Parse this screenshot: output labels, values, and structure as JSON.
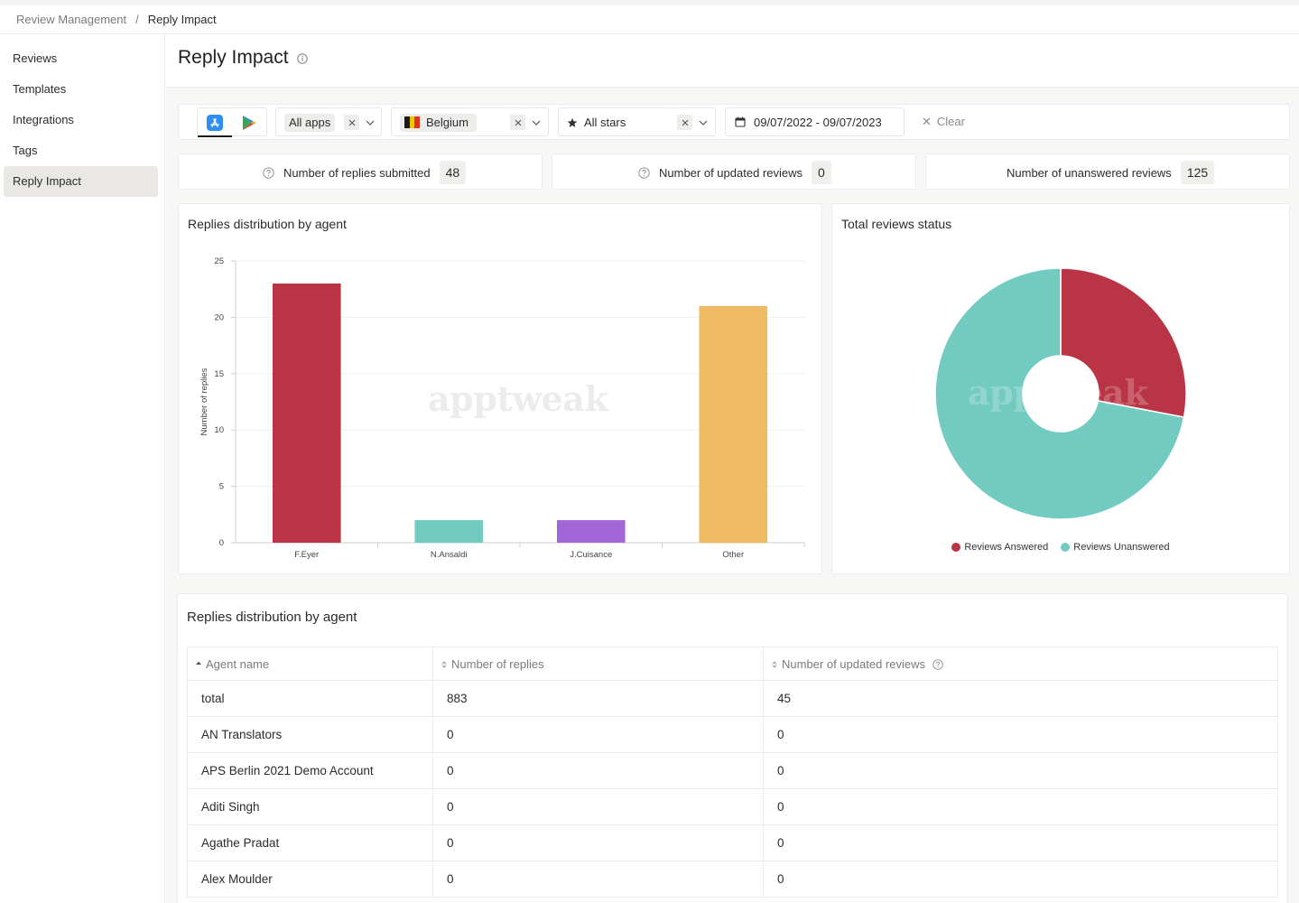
{
  "breadcrumb": {
    "parent": "Review Management",
    "separator": "/",
    "current": "Reply Impact"
  },
  "sidebar": {
    "items": [
      {
        "label": "Reviews",
        "active": false
      },
      {
        "label": "Templates",
        "active": false
      },
      {
        "label": "Integrations",
        "active": false
      },
      {
        "label": "Tags",
        "active": false
      },
      {
        "label": "Reply Impact",
        "active": true
      }
    ]
  },
  "page": {
    "title": "Reply Impact"
  },
  "filters": {
    "stores": [
      "app-store-icon",
      "google-play-icon"
    ],
    "apps": "All apps",
    "country": "Belgium",
    "country_flag_colors": [
      "#1a1a1a",
      "#f2c500",
      "#e0301e"
    ],
    "stars": "All stars",
    "date_range": "09/07/2022 - 09/07/2023",
    "clear": "Clear"
  },
  "kpis": [
    {
      "label": "Number of replies submitted",
      "value": "48",
      "has_help_icon": true
    },
    {
      "label": "Number of updated reviews",
      "value": "0",
      "has_help_icon": true
    },
    {
      "label": "Number of unanswered reviews",
      "value": "125",
      "has_help_icon": false
    }
  ],
  "watermark": "apptweak",
  "chart_data": [
    {
      "type": "bar",
      "title": "Replies distribution by agent",
      "ylabel": "Number of replies",
      "xlabel": "",
      "categories": [
        "F.Eyer",
        "N.Ansaldi",
        "J.Cuisance",
        "Other"
      ],
      "values": [
        23,
        2,
        2,
        21
      ],
      "colors": [
        "#b93444",
        "#72cbc1",
        "#a366d6",
        "#efba62"
      ],
      "ylim": [
        0,
        25
      ],
      "yticks": [
        0,
        5,
        10,
        15,
        20,
        25
      ],
      "grid": true
    },
    {
      "type": "pie",
      "title": "Total reviews status",
      "labels": [
        "Reviews Answered",
        "Reviews Unanswered"
      ],
      "values": [
        28,
        72
      ],
      "colors": [
        "#b93444",
        "#72cbc1"
      ],
      "donut": true,
      "legend": "bottom"
    }
  ],
  "table": {
    "title": "Replies distribution by agent",
    "columns": [
      "Agent name",
      "Number of replies",
      "Number of updated reviews"
    ],
    "rows": [
      [
        "total",
        "883",
        "45"
      ],
      [
        "AN Translators",
        "0",
        "0"
      ],
      [
        "APS Berlin 2021 Demo Account",
        "0",
        "0"
      ],
      [
        "Aditi Singh",
        "0",
        "0"
      ],
      [
        "Agathe Pradat",
        "0",
        "0"
      ],
      [
        "Alex Moulder",
        "0",
        "0"
      ]
    ]
  }
}
